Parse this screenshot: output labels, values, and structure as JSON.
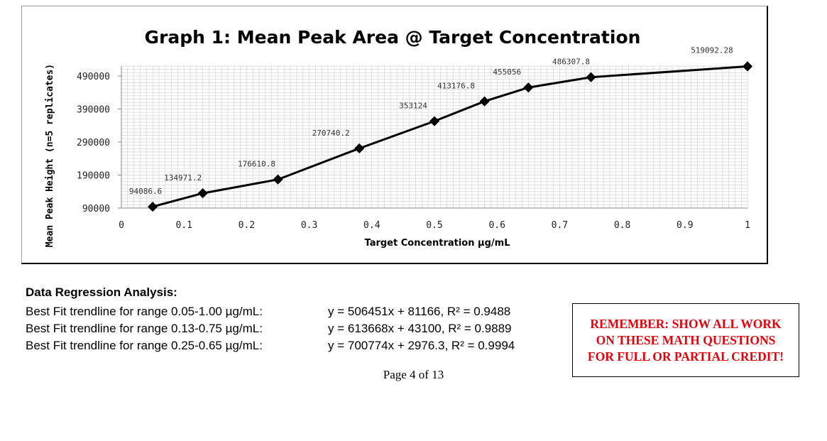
{
  "colors": {
    "line": "#000000",
    "grid": "#d9d9d9",
    "note": "#e8000b"
  },
  "chart_data": {
    "type": "line",
    "title": "Graph 1: Mean Peak Area @ Target Concentration",
    "xlabel": "Target Concentration µg/mL",
    "ylabel": "Mean Peak Height (n=5 replicates)",
    "x_ticks": [
      0,
      0.1,
      0.2,
      0.3,
      0.4,
      0.5,
      0.6,
      0.7,
      0.8,
      0.9,
      1
    ],
    "x_tick_labels": [
      "0",
      "0.1",
      "0.2",
      "0.3",
      "0.4",
      "0.5",
      "0.6",
      "0.7",
      "0.8",
      "0.9",
      "1"
    ],
    "y_ticks": [
      90000,
      190000,
      290000,
      390000,
      490000
    ],
    "y_tick_labels": [
      "90000",
      "190000",
      "290000",
      "390000",
      "490000"
    ],
    "xlim": [
      0,
      1
    ],
    "ylim": [
      90000,
      520000
    ],
    "grid": true,
    "series": [
      {
        "name": "Mean Peak Area",
        "x": [
          0.05,
          0.13,
          0.25,
          0.38,
          0.5,
          0.58,
          0.65,
          0.75,
          1.0
        ],
        "values": [
          94086.6,
          134971.2,
          176610.8,
          270740.2,
          353124,
          413176.8,
          455056,
          486307.8,
          519092.28
        ],
        "labels": [
          "94086.6",
          "134971.2",
          "176610.8",
          "270740.2",
          "353124",
          "413176.8",
          "455056",
          "486307.8",
          "519092.28"
        ]
      }
    ]
  },
  "regression": {
    "heading": "Data Regression Analysis:",
    "rows": [
      {
        "range": "Best Fit trendline for range 0.05-1.00 µg/mL:",
        "equation": "y = 506451x + 81166, R² = 0.9488"
      },
      {
        "range": "Best Fit trendline for range 0.13-0.75 µg/mL:",
        "equation": "y = 613668x + 43100, R² = 0.9889"
      },
      {
        "range": "Best Fit trendline for range 0.25-0.65 µg/mL:",
        "equation": "y = 700774x + 2976.3, R² = 0.9994"
      }
    ]
  },
  "page_number": "Page 4 of 13",
  "note": "REMEMBER: SHOW ALL WORK ON THESE MATH QUESTIONS FOR FULL OR PARTIAL CREDIT!"
}
